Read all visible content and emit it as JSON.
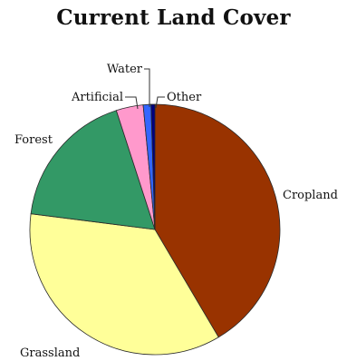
{
  "chart_data": {
    "type": "pie",
    "title": "Current Land Cover",
    "start_angle_deg": 0,
    "direction": "clockwise",
    "slices": [
      {
        "label": "Cropland",
        "value": 41.5,
        "color": "#993300"
      },
      {
        "label": "Grassland",
        "value": 35.5,
        "color": "#ffff99"
      },
      {
        "label": "Forest",
        "value": 18.0,
        "color": "#339966"
      },
      {
        "label": "Artificial",
        "value": 3.5,
        "color": "#ff99cc"
      },
      {
        "label": "Water",
        "value": 1.0,
        "color": "#3366ff"
      },
      {
        "label": "Other",
        "value": 0.5,
        "color": "#000080"
      }
    ],
    "legend": "none"
  }
}
